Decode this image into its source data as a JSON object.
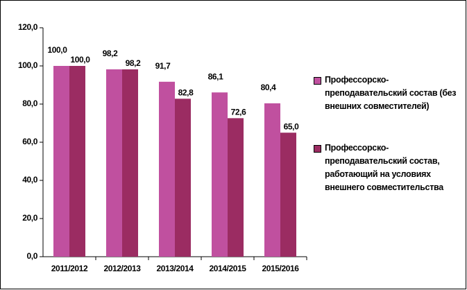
{
  "chart_data": {
    "type": "bar",
    "categories": [
      "2011/2012",
      "2012/2013",
      "2013/2014",
      "2014/2015",
      "2015/2016"
    ],
    "series": [
      {
        "name": "Профессорско-преподавательский состав (без внешних совместителей)",
        "color": "#c0509f",
        "values": [
          100.0,
          98.2,
          91.7,
          86.1,
          80.4
        ],
        "value_labels": [
          "100,0",
          "98,2",
          "91,7",
          "86,1",
          "80,4"
        ]
      },
      {
        "name": "Профессорско-преподавательский состав, работающий на условиях внешнего совместительства",
        "color": "#9b2c62",
        "values": [
          100.0,
          98.2,
          82.8,
          72.6,
          65.0
        ],
        "value_labels": [
          "100,0",
          "98,2",
          "82,8",
          "72,6",
          "65,0"
        ]
      }
    ],
    "ylim": [
      0,
      120
    ],
    "yticks": [
      {
        "value": 0,
        "label": "0,0"
      },
      {
        "value": 20,
        "label": "20,0"
      },
      {
        "value": 40,
        "label": "40,0"
      },
      {
        "value": 60,
        "label": "60,0"
      },
      {
        "value": 80,
        "label": "80,0"
      },
      {
        "value": 100,
        "label": "100,0"
      },
      {
        "value": 120,
        "label": "120,0"
      }
    ],
    "grid": false,
    "legend": "right"
  }
}
